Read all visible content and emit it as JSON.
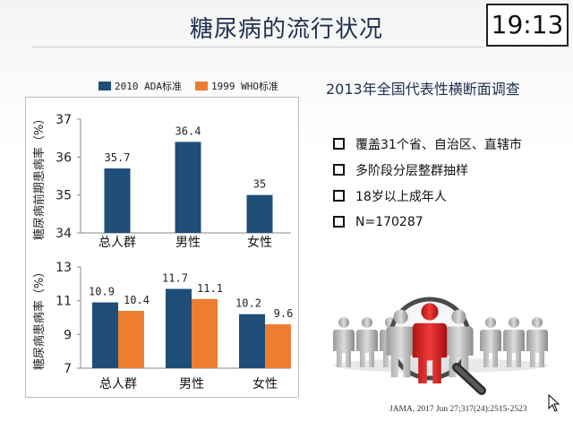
{
  "header": {
    "title": "糖尿病的流行状况",
    "clock": "19:13"
  },
  "legend": [
    {
      "label": "2010 ADA标准",
      "color": "#1f4e79"
    },
    {
      "label": "1999 WHO标准",
      "color": "#ed7d31"
    }
  ],
  "survey": {
    "title": "2013年全国代表性横断面调查",
    "bullets": [
      "覆盖31个省、自治区、直辖市",
      "多阶段分层整群抽样",
      "18岁以上成年人",
      "N=170287"
    ]
  },
  "citation": "JAMA, 2017 Jun 27;317(24):2515-2523",
  "chart_data": [
    {
      "type": "bar",
      "ylabel": "糖尿病前期患病率（%）",
      "categories": [
        "总人群",
        "男性",
        "女性"
      ],
      "series": [
        {
          "name": "2010 ADA标准",
          "values": [
            35.7,
            36.4,
            35
          ]
        }
      ],
      "value_labels": [
        "35.7",
        "36.4",
        "35"
      ],
      "ylim": [
        34,
        37
      ],
      "yticks": [
        "34",
        "35",
        "36",
        "37"
      ],
      "grid": false
    },
    {
      "type": "bar",
      "ylabel": "糖尿病患病率（%）",
      "categories": [
        "总人群",
        "男性",
        "女性"
      ],
      "series": [
        {
          "name": "2010 ADA标准",
          "values": [
            10.9,
            11.7,
            10.2
          ]
        },
        {
          "name": "1999 WHO标准",
          "values": [
            10.4,
            11.1,
            9.6
          ]
        }
      ],
      "value_labels": [
        [
          "10.9",
          "11.7",
          "10.2"
        ],
        [
          "10.4",
          "11.1",
          "9.6"
        ]
      ],
      "ylim": [
        7,
        13
      ],
      "yticks": [
        "7",
        "9",
        "11",
        "13"
      ],
      "grid": false
    }
  ]
}
